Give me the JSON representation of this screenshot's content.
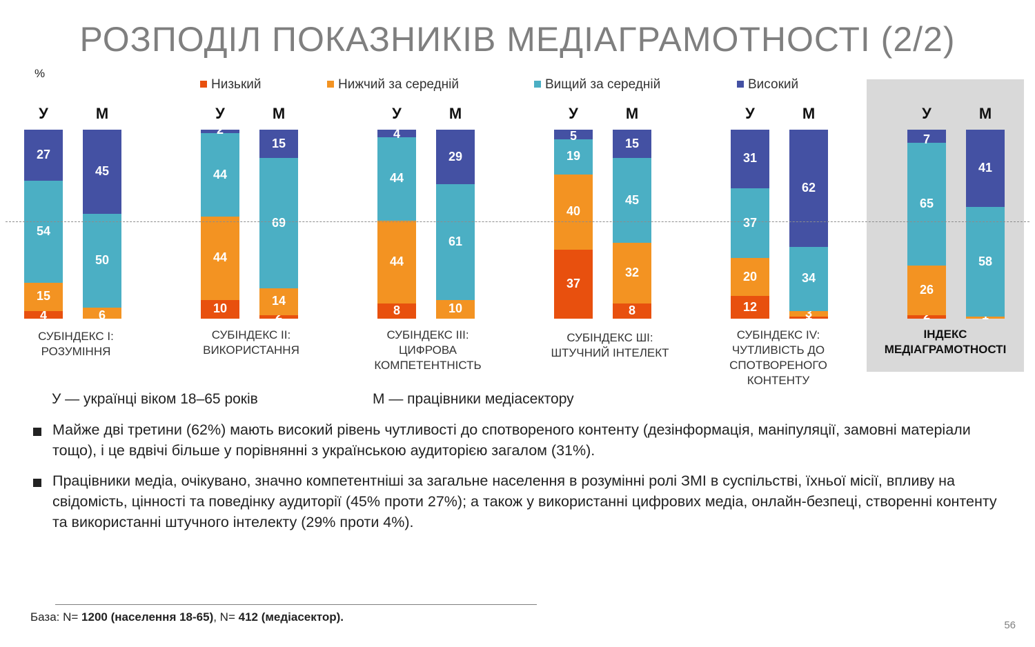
{
  "title": "РОЗПОДІЛ ПОКАЗНИКІВ МЕДІАГРАМОТНОСТІ (2/2)",
  "unit_label": "%",
  "colors": {
    "low": "#E8500E",
    "below_avg": "#F39322",
    "above_avg": "#4BAFC4",
    "high": "#4451A3",
    "highlight_bg": "#D9D9D9"
  },
  "chart_data": {
    "type": "bar",
    "stacked": true,
    "normalized_to": 100,
    "legend_position": "top",
    "series_names": [
      "Низький",
      "Нижчий за середній",
      "Вищий за середній",
      "Високий"
    ],
    "groups": [
      {
        "label": "СУБІНДЕКС І: РОЗУМІННЯ",
        "highlight": false,
        "bars": [
          {
            "head": "У",
            "values": [
              4,
              15,
              54,
              27
            ],
            "labels": [
              "4",
              "15",
              "54",
              "27"
            ]
          },
          {
            "head": "М",
            "values": [
              0,
              6,
              50,
              45
            ],
            "labels": [
              "",
              "6",
              "50",
              "45"
            ]
          }
        ]
      },
      {
        "label": "СУБІНДЕКС ІІ: ВИКОРИСТАННЯ",
        "highlight": false,
        "bars": [
          {
            "head": "У",
            "values": [
              10,
              44,
              44,
              2
            ],
            "labels": [
              "10",
              "44",
              "44",
              "2"
            ]
          },
          {
            "head": "М",
            "values": [
              2,
              14,
              69,
              15
            ],
            "labels": [
              "2",
              "14",
              "69",
              "15"
            ]
          }
        ]
      },
      {
        "label": "СУБІНДЕКС ІІІ: ЦИФРОВА КОМПЕТЕНТНІСТЬ",
        "highlight": false,
        "bars": [
          {
            "head": "У",
            "values": [
              8,
              44,
              44,
              4
            ],
            "labels": [
              "8",
              "44",
              "44",
              "4"
            ]
          },
          {
            "head": "М",
            "values": [
              0,
              10,
              61,
              29
            ],
            "labels": [
              "",
              "10",
              "61",
              "29"
            ]
          }
        ]
      },
      {
        "label": "СУБІНДЕКС ШІ: ШТУЧНИЙ ІНТЕЛЕКТ",
        "highlight": false,
        "bars": [
          {
            "head": "У",
            "values": [
              37,
              40,
              19,
              5
            ],
            "labels": [
              "37",
              "40",
              "19",
              "5"
            ]
          },
          {
            "head": "М",
            "values": [
              8,
              32,
              45,
              15
            ],
            "labels": [
              "8",
              "32",
              "45",
              "15"
            ]
          }
        ]
      },
      {
        "label": "СУБІНДЕКС ІV: ЧУТЛИВІСТЬ ДО СПОТВОРЕНОГО КОНТЕНТУ",
        "highlight": false,
        "bars": [
          {
            "head": "У",
            "values": [
              12,
              20,
              37,
              31
            ],
            "labels": [
              "12",
              "20",
              "37",
              "31"
            ]
          },
          {
            "head": "М",
            "values": [
              1,
              3,
              34,
              62
            ],
            "labels": [
              "1",
              "3",
              "34",
              "62"
            ]
          }
        ]
      },
      {
        "label": "ІНДЕКС МЕДІАГРАМОТНОСТІ",
        "highlight": true,
        "bars": [
          {
            "head": "У",
            "values": [
              2,
              26,
              65,
              7
            ],
            "labels": [
              "2",
              "26",
              "65",
              "7"
            ]
          },
          {
            "head": "М",
            "values": [
              0,
              1,
              58,
              41
            ],
            "labels": [
              "",
              "1",
              "58",
              "41"
            ]
          }
        ]
      }
    ]
  },
  "notes": {
    "u": "У — українці віком 18–65 років",
    "m": "М — працівники медіасектору"
  },
  "bullets": [
    "Майже дві третини (62%) мають високий рівень чутливості до спотвореного контенту (дезінформація, маніпуляції, замовні матеріали тощо), і це вдвічі більше у порівнянні з українською аудиторією загалом (31%).",
    "Працівники медіа, очікувано, значно компетентніші за загальне населення в розумінні ролі ЗМІ в суспільстві, їхньої місії, впливу на свідомість, цінності та поведінку аудиторії (45% проти 27%); а також у використанні цифрових медіа, онлайн-безпеці, створенні контенту та використанні штучного інтелекту (29% проти 4%)."
  ],
  "base": {
    "prefix": "База: N= ",
    "n1": "1200 (населення 18-65)",
    "sep": ", N= ",
    "n2": "412 (медіасектор)."
  },
  "page_number": "56"
}
